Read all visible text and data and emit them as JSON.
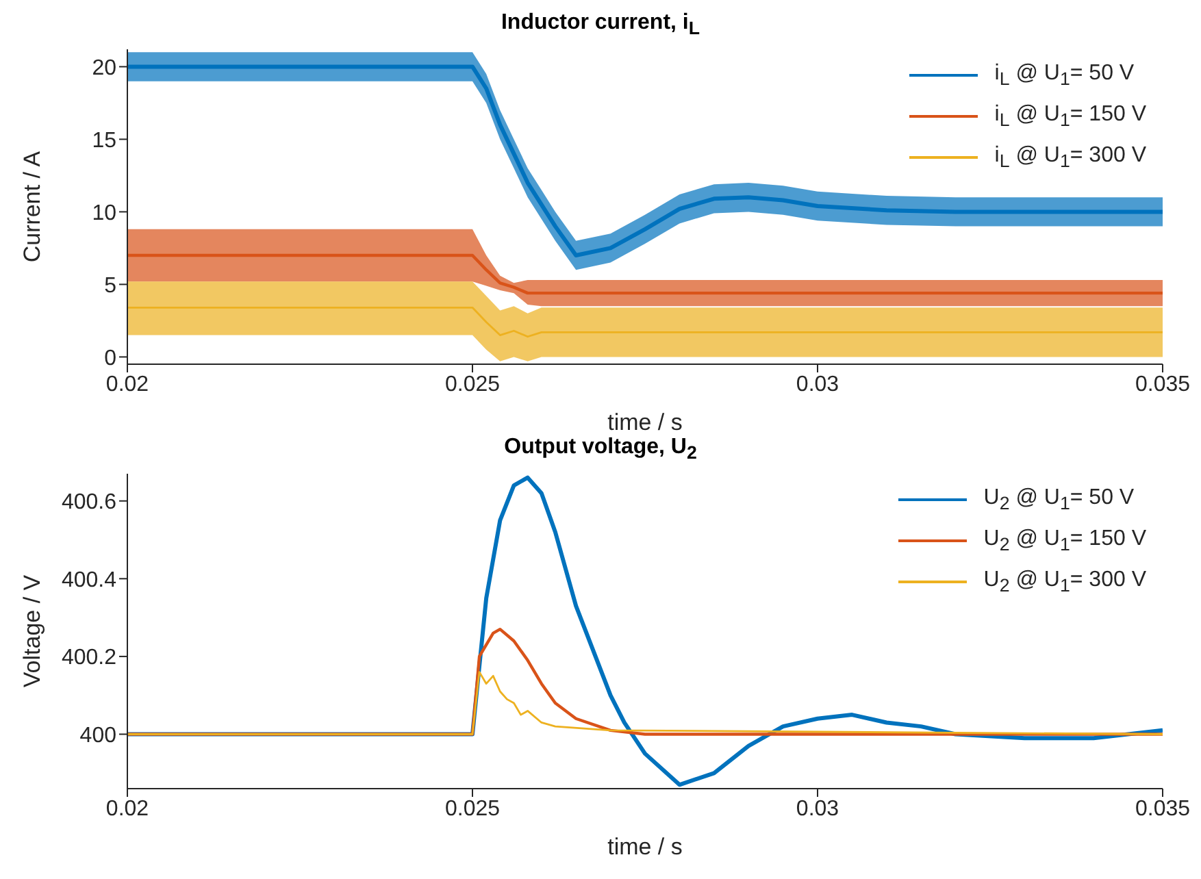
{
  "chart_data": [
    {
      "type": "line",
      "title": "Inductor current,  i$_{L}$",
      "xlabel": "time / s",
      "ylabel": "Current / A",
      "xlim": [
        0.02,
        0.035
      ],
      "xticks": [
        0.02,
        0.025,
        0.03,
        0.035
      ],
      "ylim": [
        -0.5,
        21.2
      ],
      "yticks": [
        0,
        5,
        10,
        15,
        20
      ],
      "legend": "top right",
      "grid": false,
      "x": [
        0.02,
        0.025,
        0.0252,
        0.0254,
        0.0256,
        0.0258,
        0.026,
        0.0262,
        0.0265,
        0.027,
        0.0275,
        0.028,
        0.0285,
        0.029,
        0.0295,
        0.03,
        0.031,
        0.032,
        0.033,
        0.034,
        0.035
      ],
      "series": [
        {
          "name": "i$_{L}$ @  U$_{1}$= 50 V",
          "color": "#0072bd",
          "values": [
            20,
            20,
            18.5,
            16,
            14,
            12,
            10.5,
            9,
            7,
            7.5,
            8.8,
            10.2,
            10.9,
            11,
            10.8,
            10.4,
            10.1,
            10,
            10,
            10,
            10
          ],
          "lower": [
            19,
            19,
            17.5,
            15,
            13,
            11,
            9.5,
            8,
            6,
            6.5,
            7.8,
            9.2,
            9.9,
            10,
            9.8,
            9.4,
            9.1,
            9,
            9,
            9,
            9
          ],
          "upper": [
            21,
            21,
            19.5,
            17,
            15,
            13,
            11.5,
            10,
            8,
            8.5,
            9.8,
            11.2,
            11.9,
            12,
            11.8,
            11.4,
            11.1,
            11,
            11,
            11,
            11
          ]
        },
        {
          "name": "i$_{L}$ @  U$_{1}$= 150 V",
          "color": "#d95319",
          "values": [
            7,
            7,
            6,
            5.1,
            4.8,
            4.4,
            4.4,
            4.4,
            4.4,
            4.4,
            4.4,
            4.4,
            4.4,
            4.4,
            4.4,
            4.4,
            4.4,
            4.4,
            4.4,
            4.4,
            4.4
          ],
          "lower": [
            5.2,
            5.2,
            4.9,
            4.6,
            4.4,
            3.6,
            3.5,
            3.5,
            3.5,
            3.5,
            3.5,
            3.5,
            3.5,
            3.5,
            3.5,
            3.5,
            3.5,
            3.5,
            3.5,
            3.5,
            3.5
          ],
          "upper": [
            8.8,
            8.8,
            7,
            5.6,
            5.1,
            5.3,
            5.3,
            5.3,
            5.3,
            5.3,
            5.3,
            5.3,
            5.3,
            5.3,
            5.3,
            5.3,
            5.3,
            5.3,
            5.3,
            5.3,
            5.3
          ]
        },
        {
          "name": "i$_{L}$ @  U$_{1}$= 300 V",
          "color": "#edb120",
          "values": [
            3.4,
            3.4,
            2.4,
            1.5,
            1.8,
            1.4,
            1.7,
            1.7,
            1.7,
            1.7,
            1.7,
            1.7,
            1.7,
            1.7,
            1.7,
            1.7,
            1.7,
            1.7,
            1.7,
            1.7,
            1.7
          ],
          "lower": [
            1.5,
            1.5,
            0.5,
            -0.3,
            0,
            -0.3,
            0,
            0,
            0,
            0,
            0,
            0,
            0,
            0,
            0,
            0,
            0,
            0,
            0,
            0,
            0
          ],
          "upper": [
            5.2,
            5.2,
            4.2,
            3.2,
            3.5,
            3,
            3.4,
            3.4,
            3.4,
            3.4,
            3.4,
            3.4,
            3.4,
            3.4,
            3.4,
            3.4,
            3.4,
            3.4,
            3.4,
            3.4,
            3.4
          ]
        }
      ]
    },
    {
      "type": "line",
      "title": "Output voltage,  U$_{2}$",
      "xlabel": "time / s",
      "ylabel": "Voltage / V",
      "xlim": [
        0.02,
        0.035
      ],
      "xticks": [
        0.02,
        0.025,
        0.03,
        0.035
      ],
      "ylim": [
        399.86,
        400.67
      ],
      "yticks": [
        400,
        400.2,
        400.4,
        400.6
      ],
      "legend": "top right",
      "grid": false,
      "series": [
        {
          "name": "U$_{2}$ @  U$_{1}$= 50 V",
          "color": "#0072bd",
          "x": [
            0.02,
            0.025,
            0.0252,
            0.0254,
            0.0256,
            0.0258,
            0.026,
            0.0262,
            0.0265,
            0.027,
            0.0272,
            0.0275,
            0.028,
            0.0285,
            0.029,
            0.0295,
            0.03,
            0.0305,
            0.031,
            0.0315,
            0.032,
            0.033,
            0.034,
            0.035
          ],
          "values": [
            400,
            400,
            400.35,
            400.55,
            400.64,
            400.66,
            400.62,
            400.52,
            400.33,
            400.1,
            400.03,
            399.95,
            399.87,
            399.9,
            399.97,
            400.02,
            400.04,
            400.05,
            400.03,
            400.02,
            400,
            399.99,
            399.99,
            400.01
          ]
        },
        {
          "name": "U$_{2}$ @  U$_{1}$= 150 V",
          "color": "#d95319",
          "x": [
            0.02,
            0.025,
            0.0251,
            0.0253,
            0.0254,
            0.0256,
            0.0258,
            0.026,
            0.0262,
            0.0265,
            0.027,
            0.0275,
            0.035
          ],
          "values": [
            400,
            400,
            400.2,
            400.26,
            400.27,
            400.24,
            400.19,
            400.13,
            400.08,
            400.04,
            400.01,
            400,
            400
          ]
        },
        {
          "name": "U$_{2}$ @  U$_{1}$= 300 V",
          "color": "#edb120",
          "x": [
            0.02,
            0.025,
            0.0251,
            0.0252,
            0.0253,
            0.0254,
            0.0255,
            0.0256,
            0.0257,
            0.0258,
            0.026,
            0.0262,
            0.027,
            0.035
          ],
          "values": [
            400,
            400,
            400.16,
            400.13,
            400.15,
            400.11,
            400.09,
            400.08,
            400.05,
            400.06,
            400.03,
            400.02,
            400.01,
            400
          ]
        }
      ]
    }
  ]
}
